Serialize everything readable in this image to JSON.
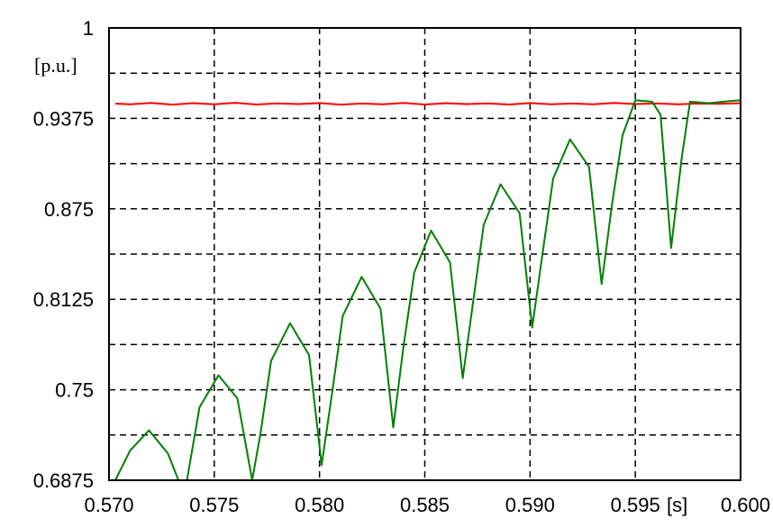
{
  "chart_data": {
    "type": "line",
    "ylabel": "[p.u.]",
    "xlabel": "[s]",
    "xlim": [
      0.57,
      0.6
    ],
    "ylim": [
      0.6875,
      1.0
    ],
    "x_ticks": [
      "0.570",
      "0.575",
      "0.580",
      "0.585",
      "0.590",
      "0.595",
      "0.600"
    ],
    "y_ticks": [
      "0.6875",
      "0.75",
      "0.8125",
      "0.875",
      "0.9375",
      "1"
    ],
    "grid": true,
    "grid_style": "dashed",
    "series": [
      {
        "color": "#ff0000",
        "points": [
          [
            0.5703,
            0.9477
          ],
          [
            0.571,
            0.9473
          ],
          [
            0.572,
            0.9482
          ],
          [
            0.573,
            0.947
          ],
          [
            0.574,
            0.948
          ],
          [
            0.575,
            0.9472
          ],
          [
            0.576,
            0.9483
          ],
          [
            0.577,
            0.9471
          ],
          [
            0.578,
            0.9479
          ],
          [
            0.579,
            0.9474
          ],
          [
            0.58,
            0.9481
          ],
          [
            0.581,
            0.947
          ],
          [
            0.582,
            0.9478
          ],
          [
            0.583,
            0.9473
          ],
          [
            0.584,
            0.9482
          ],
          [
            0.585,
            0.9471
          ],
          [
            0.586,
            0.948
          ],
          [
            0.587,
            0.9474
          ],
          [
            0.588,
            0.9479
          ],
          [
            0.589,
            0.9471
          ],
          [
            0.59,
            0.9481
          ],
          [
            0.591,
            0.9473
          ],
          [
            0.592,
            0.9478
          ],
          [
            0.593,
            0.9472
          ],
          [
            0.594,
            0.9482
          ],
          [
            0.595,
            0.9474
          ],
          [
            0.596,
            0.9479
          ],
          [
            0.597,
            0.9472
          ],
          [
            0.598,
            0.9478
          ],
          [
            0.599,
            0.9475
          ],
          [
            0.6,
            0.948
          ]
        ]
      },
      {
        "color": "#008000",
        "points": [
          [
            0.5703,
            0.6875
          ],
          [
            0.571,
            0.708
          ],
          [
            0.5719,
            0.722
          ],
          [
            0.5728,
            0.706
          ],
          [
            0.5733,
            0.6875
          ],
          [
            0.5737,
            0.6875
          ],
          [
            0.5743,
            0.738
          ],
          [
            0.5752,
            0.76
          ],
          [
            0.5761,
            0.744
          ],
          [
            0.5768,
            0.6875
          ],
          [
            0.5772,
            0.72
          ],
          [
            0.5777,
            0.77
          ],
          [
            0.5786,
            0.796
          ],
          [
            0.5795,
            0.774
          ],
          [
            0.5801,
            0.698
          ],
          [
            0.5806,
            0.748
          ],
          [
            0.5811,
            0.801
          ],
          [
            0.582,
            0.828
          ],
          [
            0.5829,
            0.806
          ],
          [
            0.5835,
            0.724
          ],
          [
            0.584,
            0.781
          ],
          [
            0.5845,
            0.831
          ],
          [
            0.5853,
            0.86
          ],
          [
            0.5862,
            0.838
          ],
          [
            0.5868,
            0.758
          ],
          [
            0.5873,
            0.811
          ],
          [
            0.5878,
            0.864
          ],
          [
            0.5886,
            0.892
          ],
          [
            0.5895,
            0.872
          ],
          [
            0.5901,
            0.793
          ],
          [
            0.5906,
            0.845
          ],
          [
            0.5911,
            0.896
          ],
          [
            0.5919,
            0.923
          ],
          [
            0.5928,
            0.904
          ],
          [
            0.5934,
            0.823
          ],
          [
            0.5939,
            0.879
          ],
          [
            0.5944,
            0.926
          ],
          [
            0.595,
            0.95
          ],
          [
            0.5958,
            0.949
          ],
          [
            0.5962,
            0.94
          ],
          [
            0.5967,
            0.848
          ],
          [
            0.5972,
            0.91
          ],
          [
            0.5976,
            0.949
          ],
          [
            0.5985,
            0.948
          ],
          [
            0.5993,
            0.9492
          ],
          [
            0.6,
            0.95
          ]
        ]
      }
    ]
  }
}
